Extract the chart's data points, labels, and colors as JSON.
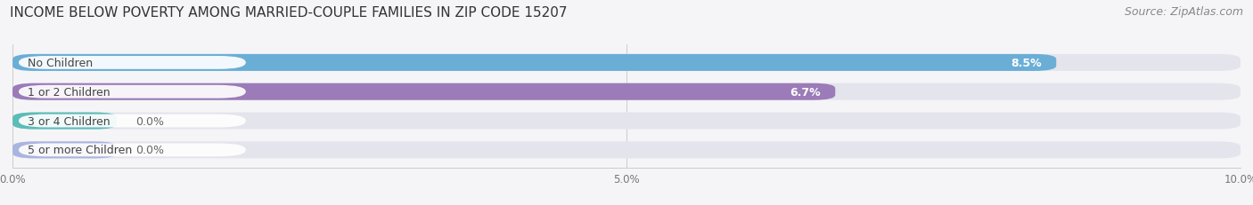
{
  "title": "INCOME BELOW POVERTY AMONG MARRIED-COUPLE FAMILIES IN ZIP CODE 15207",
  "source": "Source: ZipAtlas.com",
  "categories": [
    "No Children",
    "1 or 2 Children",
    "3 or 4 Children",
    "5 or more Children"
  ],
  "values": [
    8.5,
    6.7,
    0.0,
    0.0
  ],
  "bar_colors": [
    "#6aaed6",
    "#9b7bb8",
    "#5bbcb8",
    "#aab4e0"
  ],
  "xlim_max": 10.0,
  "xticks": [
    0.0,
    5.0,
    10.0
  ],
  "xtick_labels": [
    "0.0%",
    "5.0%",
    "10.0%"
  ],
  "bar_height": 0.58,
  "bg_strip_color": "#e4e4ec",
  "label_bg_color": "#ffffff",
  "label_text_color": "#444444",
  "value_text_color": "#ffffff",
  "background_color": "#f5f5f8",
  "title_fontsize": 11,
  "source_fontsize": 9,
  "label_fontsize": 9,
  "value_fontsize": 9,
  "zero_value_color": "#666666",
  "zero_bar_width": 0.85
}
